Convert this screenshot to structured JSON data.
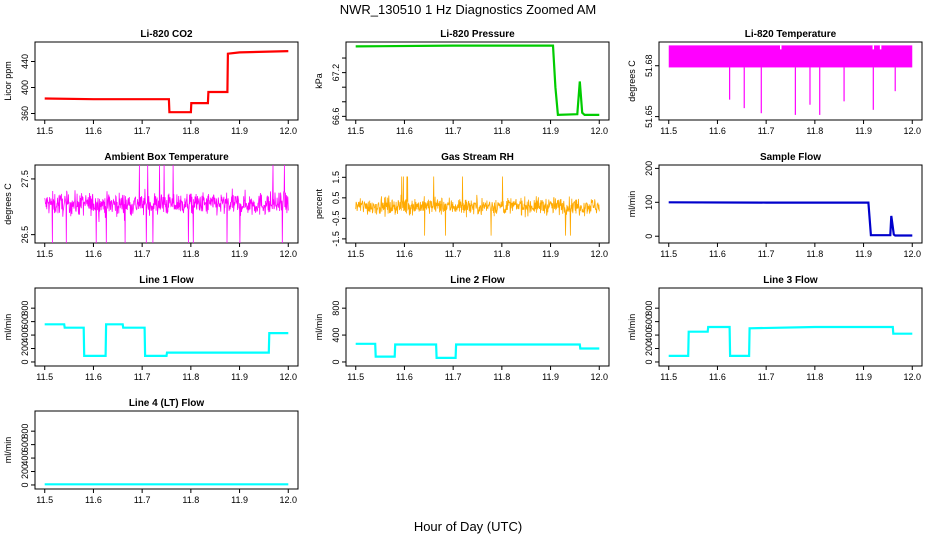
{
  "figure": {
    "title": "NWR_130510  1 Hz Diagnostics Zoomed AM",
    "xlabel": "Hour of Day (UTC)"
  },
  "chart_data": [
    {
      "type": "line",
      "title": "Li-820 CO2",
      "ylabel": "Licor ppm",
      "color": "#ff0000",
      "xlim": [
        11.48,
        12.02
      ],
      "ylim": [
        350,
        470
      ],
      "xticks": [
        11.5,
        11.6,
        11.7,
        11.8,
        11.9,
        12.0
      ],
      "yticks": [
        360,
        400,
        440
      ],
      "x": [
        11.5,
        11.6,
        11.7,
        11.755,
        11.756,
        11.8,
        11.801,
        11.835,
        11.836,
        11.875,
        11.876,
        11.9,
        12.0
      ],
      "y": [
        383,
        382,
        382,
        382,
        362,
        362,
        376,
        376,
        393,
        393,
        452,
        454,
        456
      ]
    },
    {
      "type": "line",
      "title": "Li-820 Pressure",
      "ylabel": "kPa",
      "color": "#00cc00",
      "xlim": [
        11.48,
        12.02
      ],
      "ylim": [
        66.55,
        67.62
      ],
      "xticks": [
        11.5,
        11.6,
        11.7,
        11.8,
        11.9,
        12.0
      ],
      "yticks": [
        66.6,
        67.2
      ],
      "ytick_labels": [
        "66.6",
        "67.2"
      ],
      "ygrid_extra": [
        66.8,
        67.0,
        67.4
      ],
      "x": [
        11.5,
        11.7,
        11.905,
        11.91,
        11.915,
        11.955,
        11.96,
        11.965,
        11.97,
        12.0
      ],
      "y": [
        67.56,
        67.57,
        67.57,
        67.0,
        66.62,
        66.63,
        67.08,
        66.65,
        66.62,
        66.62
      ]
    },
    {
      "type": "line",
      "title": "Li-820 Temperature",
      "ylabel": "degrees C",
      "color": "#ff00ff",
      "xlim": [
        11.48,
        12.02
      ],
      "ylim": [
        51.648,
        51.694
      ],
      "xticks": [
        11.5,
        11.6,
        11.7,
        11.8,
        11.9,
        12.0
      ],
      "yticks": [
        51.65,
        51.68
      ],
      "x": [
        11.5,
        12.0
      ],
      "band": [
        51.679,
        51.692
      ],
      "dips_x": [
        11.625,
        11.655,
        11.69,
        11.76,
        11.79,
        11.81,
        11.86,
        11.92,
        11.965
      ],
      "dips_y": [
        51.66,
        51.655,
        51.652,
        51.651,
        51.657,
        51.651,
        51.659,
        51.654,
        51.665
      ]
    },
    {
      "type": "line",
      "title": "Ambient Box Temperature",
      "ylabel": "degrees C",
      "color": "#ff00ff",
      "xlim": [
        11.48,
        12.02
      ],
      "ylim": [
        26.35,
        27.75
      ],
      "xticks": [
        11.5,
        11.6,
        11.7,
        11.8,
        11.9,
        12.0
      ],
      "yticks": [
        26.5,
        27.5
      ],
      "x": [
        11.5,
        12.0
      ],
      "mean": 27.05,
      "spread": 0.22
    },
    {
      "type": "line",
      "title": "Gas Stream RH",
      "ylabel": "percent",
      "color": "#ffaa00",
      "xlim": [
        11.48,
        12.02
      ],
      "ylim": [
        -1.7,
        2.1
      ],
      "xticks": [
        11.5,
        11.6,
        11.7,
        11.8,
        11.9,
        12.0
      ],
      "yticks": [
        -1.5,
        -0.5,
        0.5,
        1.5
      ],
      "ytick_labels": [
        "-1.5",
        "-0.5",
        "0.5",
        "1.5"
      ],
      "x": [
        11.5,
        12.0
      ],
      "mean": 0.1,
      "spread": 0.45
    },
    {
      "type": "line",
      "title": "Sample Flow",
      "ylabel": "ml/min",
      "color": "#0000cc",
      "xlim": [
        11.48,
        12.02
      ],
      "ylim": [
        -20,
        210
      ],
      "xticks": [
        11.5,
        11.6,
        11.7,
        11.8,
        11.9,
        12.0
      ],
      "yticks": [
        0,
        100,
        200
      ],
      "x": [
        11.5,
        11.7,
        11.91,
        11.915,
        11.955,
        11.957,
        11.962,
        11.965,
        12.0
      ],
      "y": [
        100,
        99,
        99,
        3,
        3,
        60,
        5,
        2,
        2
      ]
    },
    {
      "type": "line",
      "title": "Line 1 Flow",
      "ylabel": "ml/min",
      "color": "#00ffff",
      "xlim": [
        11.48,
        12.02
      ],
      "ylim": [
        -60,
        1100
      ],
      "xticks": [
        11.5,
        11.6,
        11.7,
        11.8,
        11.9,
        12.0
      ],
      "yticks": [
        0,
        200,
        400,
        600,
        800
      ],
      "x": [
        11.5,
        11.54,
        11.541,
        11.58,
        11.581,
        11.625,
        11.626,
        11.66,
        11.661,
        11.705,
        11.706,
        11.75,
        11.751,
        11.96,
        11.961,
        12.0
      ],
      "y": [
        560,
        560,
        510,
        510,
        90,
        90,
        560,
        560,
        510,
        510,
        90,
        90,
        140,
        140,
        430,
        430
      ]
    },
    {
      "type": "line",
      "title": "Line 2 Flow",
      "ylabel": "ml/min",
      "color": "#00ffff",
      "xlim": [
        11.48,
        12.02
      ],
      "ylim": [
        -60,
        1100
      ],
      "xticks": [
        11.5,
        11.6,
        11.7,
        11.8,
        11.9,
        12.0
      ],
      "yticks": [
        0,
        400,
        800
      ],
      "x": [
        11.5,
        11.54,
        11.541,
        11.58,
        11.581,
        11.665,
        11.666,
        11.705,
        11.706,
        11.96,
        11.961,
        12.0
      ],
      "y": [
        270,
        270,
        80,
        80,
        260,
        260,
        60,
        60,
        260,
        260,
        200,
        200
      ]
    },
    {
      "type": "line",
      "title": "Line 3 Flow",
      "ylabel": "ml/min",
      "color": "#00ffff",
      "xlim": [
        11.48,
        12.02
      ],
      "ylim": [
        -60,
        1100
      ],
      "xticks": [
        11.5,
        11.6,
        11.7,
        11.8,
        11.9,
        12.0
      ],
      "yticks": [
        0,
        200,
        400,
        600,
        800
      ],
      "x": [
        11.5,
        11.54,
        11.541,
        11.58,
        11.581,
        11.625,
        11.626,
        11.665,
        11.666,
        11.8,
        11.96,
        11.961,
        12.0
      ],
      "y": [
        90,
        90,
        450,
        450,
        520,
        520,
        90,
        90,
        500,
        520,
        520,
        420,
        420
      ]
    },
    {
      "type": "line",
      "title": "Line 4 (LT) Flow",
      "ylabel": "ml/min",
      "color": "#00ffff",
      "xlim": [
        11.48,
        12.02
      ],
      "ylim": [
        -60,
        1100
      ],
      "xticks": [
        11.5,
        11.6,
        11.7,
        11.8,
        11.9,
        12.0
      ],
      "yticks": [
        0,
        200,
        400,
        600,
        800
      ],
      "x": [
        11.5,
        12.0
      ],
      "y": [
        10,
        10
      ]
    }
  ]
}
